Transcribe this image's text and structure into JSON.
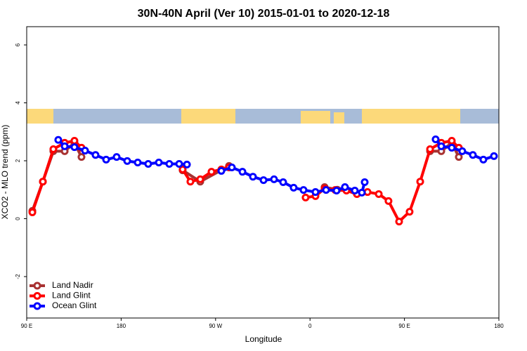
{
  "chart_data": {
    "type": "line",
    "title": "30N-40N April (Ver 10)   2015-01-01 to 2020-12-18",
    "x_label": "Longitude",
    "y_label": "XCO2 - MLO trend (ppm)",
    "xlim": [
      90,
      540
    ],
    "ylim": [
      -3.43,
      6.63
    ],
    "xticks": [
      {
        "value": 90,
        "label": "90 E"
      },
      {
        "value": 180,
        "label": "180"
      },
      {
        "value": 270,
        "label": "90 W"
      },
      {
        "value": 360,
        "label": "0"
      },
      {
        "value": 450,
        "label": "90 E"
      },
      {
        "value": 540,
        "label": "180"
      }
    ],
    "yticks": [
      -2,
      0,
      2,
      4,
      6
    ],
    "legend": "bottom-left",
    "series": [
      {
        "name": "Land Nadir",
        "color": "#a83232",
        "x": [
          95.4,
          105.4,
          115.4,
          126.2,
          135.5,
          142.2,
          null,
          238.6,
          255.4,
          282.8,
          null,
          373.9,
          386.0,
          null,
          474.4,
          485.1,
          495.1,
          501.8
        ],
        "values": [
          0.27,
          1.28,
          2.33,
          2.33,
          2.62,
          2.13,
          null,
          1.67,
          1.28,
          1.82,
          null,
          1.09,
          1.0,
          null,
          2.33,
          2.33,
          2.62,
          2.13
        ]
      },
      {
        "name": "Land Glint",
        "color": "#ff0000",
        "x": [
          95.4,
          105.4,
          115.4,
          126.2,
          135.5,
          142.2,
          null,
          238.6,
          246.0,
          255.4,
          266.1,
          275.5,
          282.8,
          null,
          355.8,
          365.2,
          373.9,
          384.0,
          394.7,
          404.7,
          414.8,
          425.5,
          434.8,
          444.9,
          454.9,
          465.0,
          474.4,
          485.1,
          495.1,
          501.8
        ],
        "values": [
          0.22,
          1.28,
          2.4,
          2.62,
          2.69,
          2.45,
          null,
          1.7,
          1.28,
          1.36,
          1.62,
          1.7,
          1.77,
          null,
          0.73,
          0.78,
          1.04,
          0.99,
          0.97,
          0.85,
          0.92,
          0.85,
          0.61,
          -0.1,
          0.24,
          1.28,
          2.4,
          2.62,
          2.69,
          2.45
        ]
      },
      {
        "name": "Ocean Glint",
        "color": "#0000ff",
        "x": [
          120.1,
          126.2,
          135.5,
          145.6,
          155.6,
          165.7,
          175.7,
          185.8,
          195.8,
          205.8,
          215.9,
          225.9,
          235.3,
          242.7,
          null,
          275.5,
          285.5,
          295.6,
          305.6,
          315.7,
          325.7,
          334.4,
          344.4,
          353.8,
          365.2,
          375.3,
          385.3,
          393.3,
          402.7,
          409.4,
          412.1,
          null,
          479.7,
          485.1,
          495.1,
          505.1,
          515.2,
          525.2,
          535.3
        ],
        "values": [
          2.72,
          2.5,
          2.47,
          2.35,
          2.2,
          2.04,
          2.13,
          1.99,
          1.94,
          1.89,
          1.94,
          1.89,
          1.89,
          1.87,
          null,
          1.65,
          1.77,
          1.62,
          1.45,
          1.33,
          1.36,
          1.26,
          1.07,
          0.99,
          0.92,
          0.99,
          0.97,
          1.09,
          0.97,
          0.9,
          1.26,
          null,
          2.74,
          2.5,
          2.45,
          2.33,
          2.2,
          2.04,
          2.16
        ]
      }
    ]
  }
}
